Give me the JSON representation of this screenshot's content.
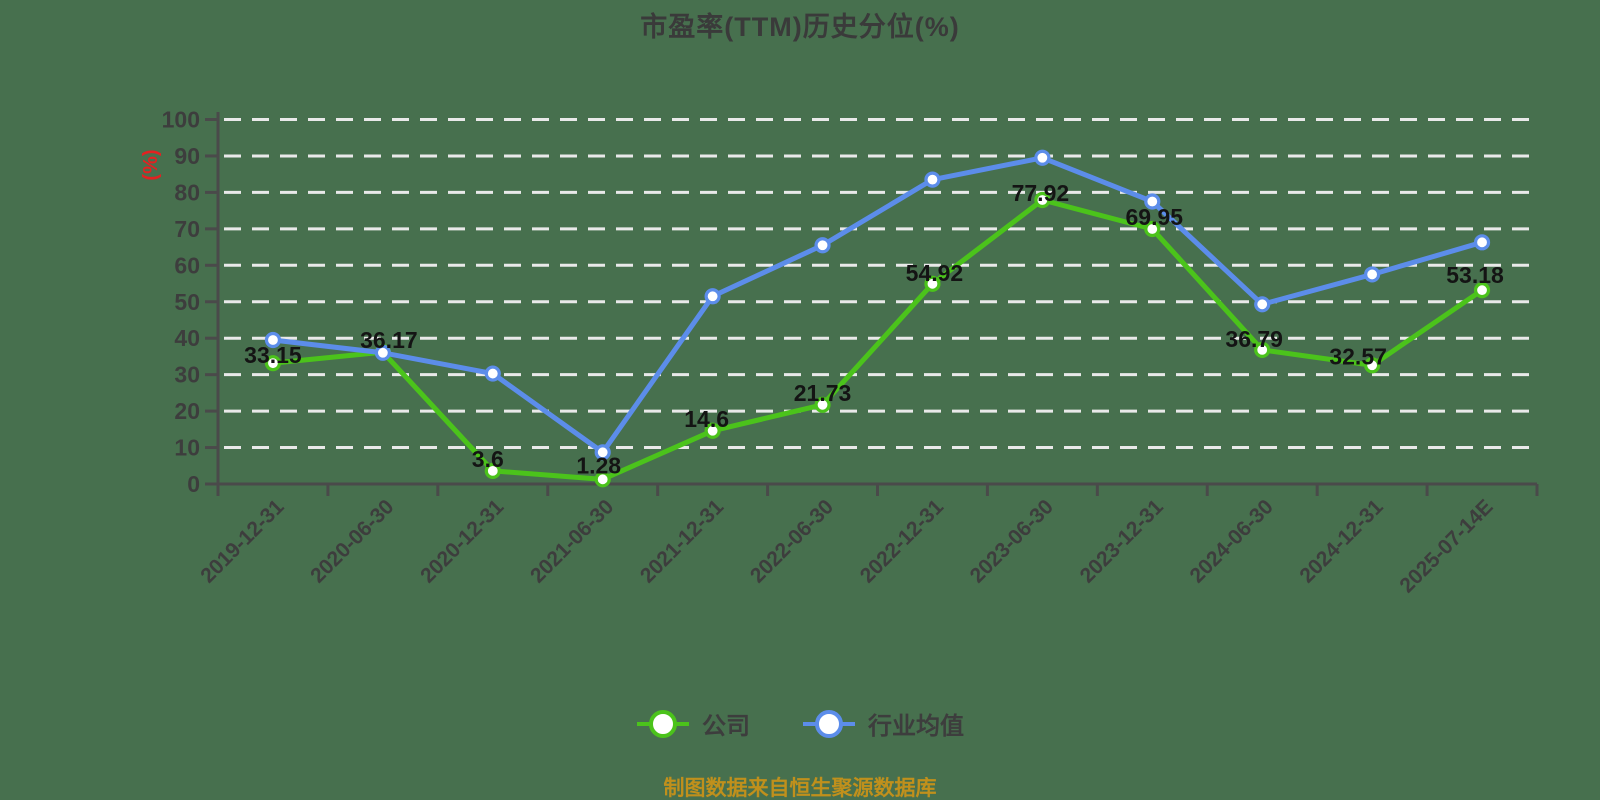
{
  "title": "市盈率(TTM)历史分位(%)",
  "footer": {
    "source": "制图数据来自恒生聚源数据库"
  },
  "legend": [
    {
      "label": "公司",
      "color": "#4BC31B"
    },
    {
      "label": "行业均值",
      "color": "#5C8DEA"
    }
  ],
  "colors": {
    "background": "#47704E",
    "grid": "#E9E9E9",
    "axis": "#4A4A4A",
    "tick_label": "#3D3D3D",
    "data_label": "#141414",
    "title": "#3A3A3A",
    "unit_label": "#E32121",
    "footer": "#C0901C",
    "company": "#4BC31B",
    "industry": "#5C8DEA",
    "marker_fill": "#FFFFFF"
  },
  "chart_data": {
    "type": "line",
    "title": "市盈率(TTM)历史分位(%)",
    "ylabel": "(%)",
    "xlabel": "",
    "ylim": [
      0,
      100
    ],
    "ytick_step": 10,
    "grid": "horizontal-dashed",
    "legend_position": "bottom",
    "x_label_rotation": -45,
    "categories": [
      "2019-12-31",
      "2020-06-30",
      "2020-12-31",
      "2021-06-30",
      "2021-12-31",
      "2022-06-30",
      "2022-12-31",
      "2023-06-30",
      "2023-12-31",
      "2024-06-30",
      "2024-12-31",
      "2025-07-14E"
    ],
    "series": [
      {
        "name": "公司",
        "color": "#4BC31B",
        "show_value_labels": true,
        "values": [
          33.15,
          36.17,
          3.6,
          1.28,
          14.6,
          21.73,
          54.92,
          77.92,
          69.95,
          36.79,
          32.57,
          53.18
        ],
        "value_labels": [
          "33.15",
          "36.17",
          "3.6",
          "1.28",
          "14.6",
          "21.73",
          "54.92",
          "77.92",
          "69.95",
          "36.79",
          "32.57",
          "53.18"
        ]
      },
      {
        "name": "行业均值",
        "color": "#5C8DEA",
        "show_value_labels": false,
        "values": [
          39.5,
          36.0,
          30.3,
          8.7,
          51.5,
          65.5,
          83.5,
          89.5,
          77.5,
          49.3,
          57.5,
          66.3
        ]
      }
    ]
  }
}
